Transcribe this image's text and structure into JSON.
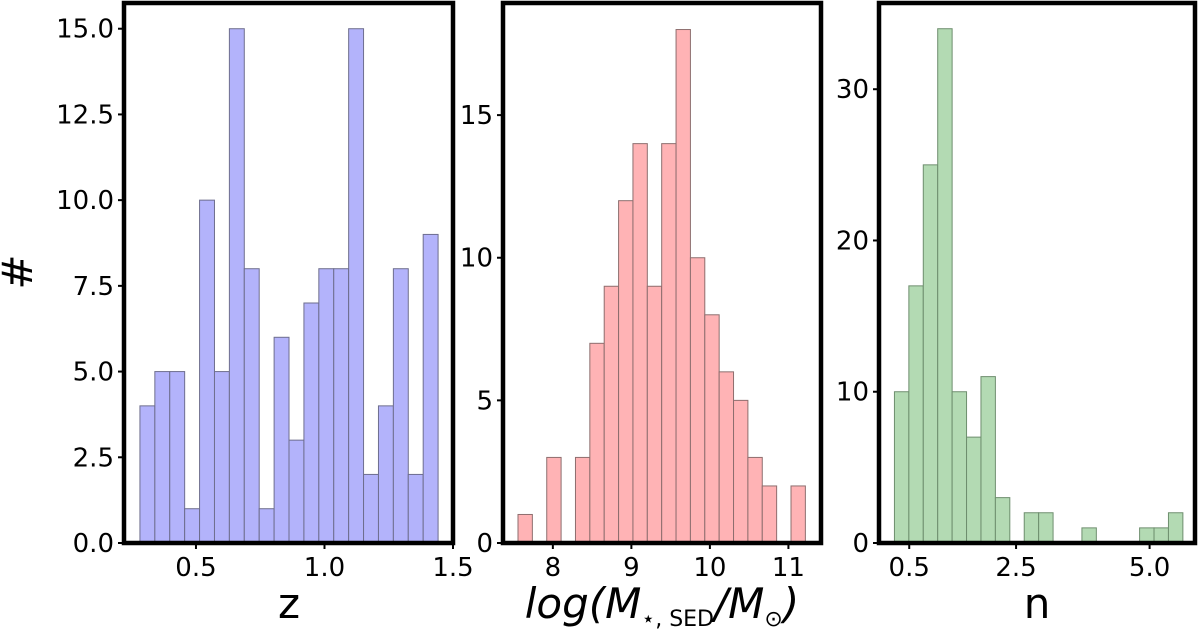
{
  "chart_data": [
    {
      "type": "bar",
      "subtype": "histogram",
      "xlabel": "z",
      "ylabel": "#",
      "xlim": [
        0.22,
        1.5
      ],
      "ylim": [
        0,
        15.75
      ],
      "xticks": [
        "0.5",
        "1.0",
        "1.5"
      ],
      "xtick_values": [
        0.5,
        1.0,
        1.5
      ],
      "yticks": [
        "0.0",
        "2.5",
        "5.0",
        "7.5",
        "10.0",
        "12.5",
        "15.0"
      ],
      "ytick_values": [
        0,
        2.5,
        5,
        7.5,
        10,
        12.5,
        15
      ],
      "bin_start": 0.282,
      "bin_width": 0.058,
      "values": [
        4,
        5,
        5,
        1,
        10,
        5,
        15,
        8,
        1,
        6,
        3,
        7,
        8,
        8,
        15,
        2,
        4,
        8,
        2,
        9
      ],
      "color": "#b3b3fb",
      "edge_color": "#6e6e8e"
    },
    {
      "type": "bar",
      "subtype": "histogram",
      "xlabel": "log(M⋆, SED/M⊙)",
      "xlabel_parts": {
        "pre": "log(M",
        "sub1": "⋆, ",
        "sub2": "SED",
        "mid": "/M",
        "sub3": "⊙",
        "post": ")"
      },
      "xlim": [
        7.365,
        11.415
      ],
      "ylim": [
        0,
        18.93
      ],
      "xticks": [
        "8",
        "9",
        "10",
        "11"
      ],
      "xtick_values": [
        8,
        9,
        10,
        11
      ],
      "yticks": [
        "0",
        "5",
        "10",
        "15"
      ],
      "ytick_values": [
        0,
        5,
        10,
        15
      ],
      "bin_start": 7.556,
      "bin_width": 0.183,
      "values": [
        1,
        0,
        3,
        0,
        3,
        7,
        9,
        12,
        14,
        9,
        14,
        18,
        10,
        8,
        6,
        5,
        3,
        2,
        0,
        2
      ],
      "color": "#ffb3b5",
      "edge_color": "#8e6e6e"
    },
    {
      "type": "bar",
      "subtype": "histogram",
      "xlabel": "n",
      "xlim": [
        -0.066,
        5.85
      ],
      "ylim": [
        0,
        35.7
      ],
      "xticks": [
        "0.5",
        "2.5",
        "5.0"
      ],
      "xtick_values": [
        0.5,
        2.5,
        5.0
      ],
      "yticks": [
        "0",
        "10",
        "20",
        "30"
      ],
      "ytick_values": [
        0,
        10,
        20,
        30
      ],
      "bin_start": 0.223,
      "bin_width": 0.27,
      "values": [
        10,
        17,
        25,
        34,
        10,
        7,
        11,
        3,
        0,
        2,
        2,
        0,
        0,
        1,
        0,
        0,
        0,
        1,
        1,
        2
      ],
      "color": "#b3dab3",
      "edge_color": "#6e8e6e"
    }
  ]
}
